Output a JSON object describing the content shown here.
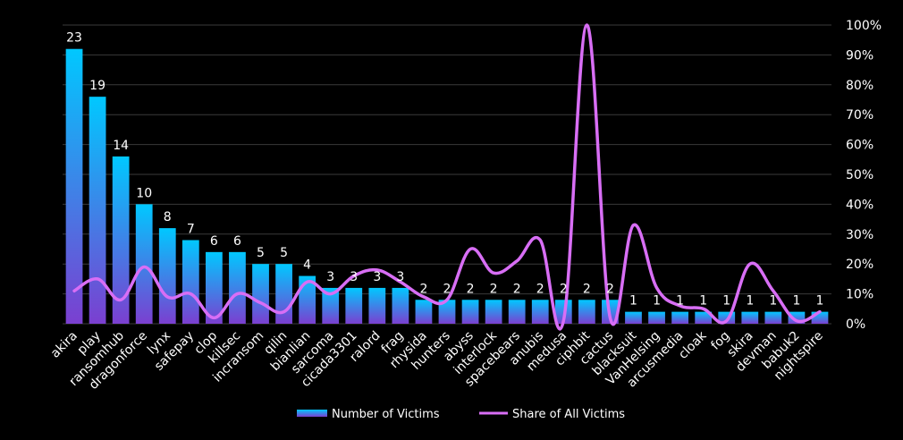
{
  "chart_data": {
    "type": "bar",
    "categories": [
      "akira",
      "play",
      "ransomhub",
      "dragonforce",
      "lynx",
      "safepay",
      "clop",
      "killsec",
      "incransom",
      "qilin",
      "bianlian",
      "sarcoma",
      "cicada3301",
      "ralord",
      "frag",
      "rhysida",
      "hunters",
      "abyss",
      "interlock",
      "spacebears",
      "anubis",
      "medusa",
      "ciphbit",
      "cactus",
      "blacksuit",
      "VanHelsing",
      "arcusmedia",
      "cloak",
      "fog",
      "skira",
      "devman",
      "babuk2",
      "nightspire"
    ],
    "series": [
      {
        "name": "Number of Victims",
        "type": "bar",
        "axis": "left",
        "values": [
          23,
          19,
          14,
          10,
          8,
          7,
          6,
          6,
          5,
          5,
          4,
          3,
          3,
          3,
          3,
          2,
          2,
          2,
          2,
          2,
          2,
          2,
          2,
          2,
          1,
          1,
          1,
          1,
          1,
          1,
          1,
          1,
          1
        ]
      },
      {
        "name": "Share of All Victims",
        "type": "line",
        "axis": "right",
        "unit": "%",
        "values": [
          11,
          15,
          8,
          19,
          9,
          10,
          2,
          10,
          7,
          4,
          14,
          10,
          16,
          18,
          14,
          9,
          8,
          25,
          17,
          21,
          28,
          1,
          100,
          2,
          33,
          12,
          6,
          5,
          1,
          20,
          11,
          1,
          4
        ]
      }
    ],
    "left_ylim": [
      0,
      25
    ],
    "right_ylim": [
      0,
      100
    ],
    "right_ticks": [
      "0%",
      "10%",
      "20%",
      "30%",
      "40%",
      "50%",
      "60%",
      "70%",
      "80%",
      "90%",
      "100%"
    ],
    "grid": true,
    "legend_position": "bottom",
    "colors": {
      "bar_top": "#00c8ff",
      "bar_bottom": "#7b3fd0",
      "line": "#d86ef5",
      "grid": "#3a3a3a",
      "background": "#000000"
    }
  },
  "legend": {
    "bars_label": "Number of Victims",
    "line_label": "Share of All Victims"
  }
}
